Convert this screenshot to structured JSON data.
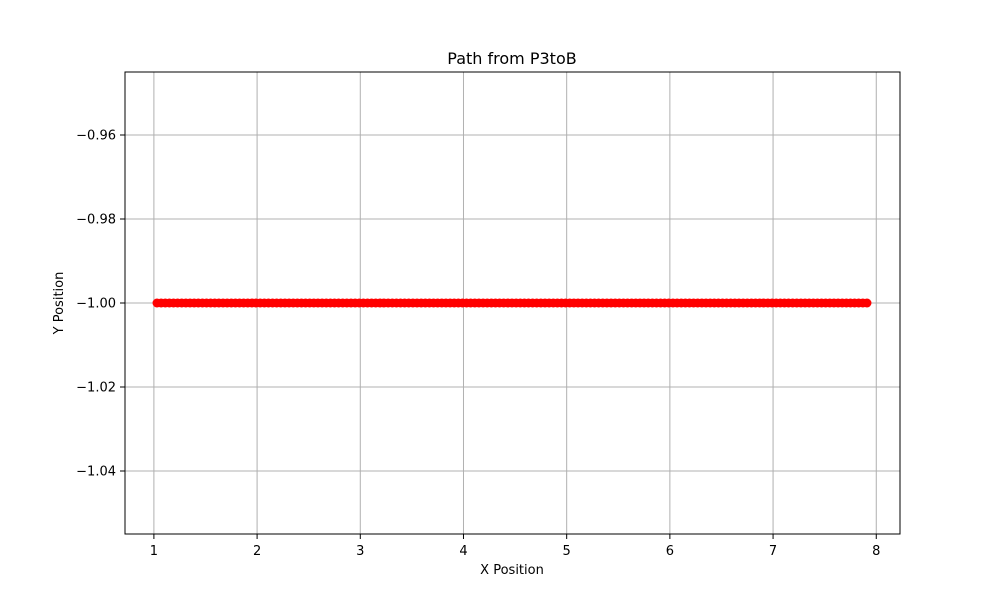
{
  "chart_data": {
    "type": "scatter",
    "title": "Path from P3toB",
    "xlabel": "X Position",
    "ylabel": "Y Position",
    "xlim": [
      0.72,
      8.23
    ],
    "ylim": [
      -1.055,
      -0.945
    ],
    "xticks": [
      1,
      2,
      3,
      4,
      5,
      6,
      7,
      8
    ],
    "xtick_labels": [
      "1",
      "2",
      "3",
      "4",
      "5",
      "6",
      "7",
      "8"
    ],
    "yticks": [
      -1.04,
      -1.02,
      -1.0,
      -0.98,
      -0.96
    ],
    "ytick_labels": [
      "−1.04",
      "−1.02",
      "−1.00",
      "−0.98",
      "−0.96"
    ],
    "grid": true,
    "marker_color": "#ff0000",
    "grid_color": "#b0b0b0",
    "series": [
      {
        "x_start": 1.03,
        "x_end": 7.91,
        "x_step": 0.04,
        "y": -1.0,
        "marker": "circle"
      }
    ]
  }
}
